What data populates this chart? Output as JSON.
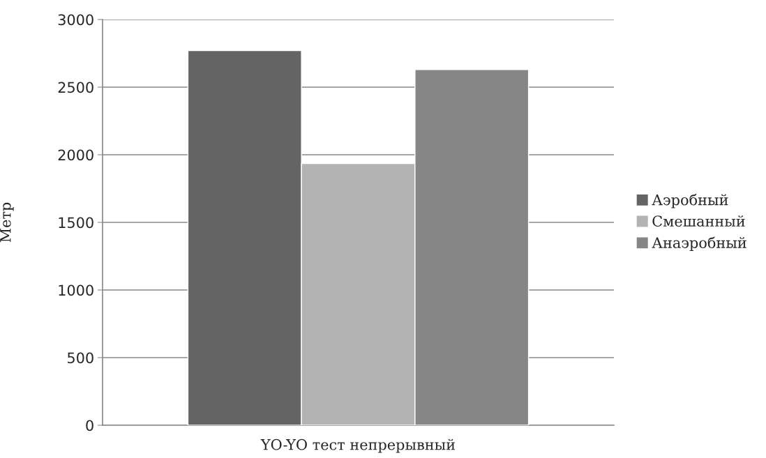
{
  "chart_data": {
    "type": "bar",
    "categories": [
      "YO-YO тест непрерывный"
    ],
    "ylabel": "Метр",
    "series": [
      {
        "name": "Аэробный",
        "color": "#646464",
        "values": [
          2770
        ]
      },
      {
        "name": "Смешанный",
        "color": "#b3b3b3",
        "values": [
          1935
        ]
      },
      {
        "name": "Анаэробный",
        "color": "#868686",
        "values": [
          2630
        ]
      }
    ],
    "ylim": [
      0,
      3000
    ],
    "yticks": [
      0,
      500,
      1000,
      1500,
      2000,
      2500,
      3000
    ],
    "grid": "y",
    "legend": "right"
  }
}
